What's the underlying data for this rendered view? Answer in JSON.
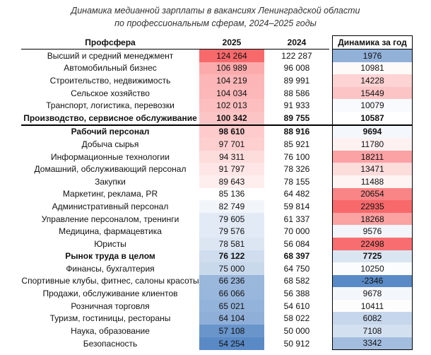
{
  "title": [
    "Динамика медианной зарплаты в вакансиях Ленинградской области",
    "по профессиональным сферам, 2024–2025 годы"
  ],
  "table": {
    "header": [
      "Профсфера",
      "2025",
      "2024",
      "Динамика за год"
    ],
    "rows": [
      [
        "Высший и средний менеджмент",
        "124 264",
        "122 287",
        "1976"
      ],
      [
        "Автомобильный бизнес",
        "106 989",
        "96 008",
        "10981"
      ],
      [
        "Строительство, недвижимость",
        "104 219",
        "89 991",
        "14228"
      ],
      [
        "Сельское хозяйство",
        "104 034",
        "88 586",
        "15449"
      ],
      [
        "Транспорт, логистика, перевозки",
        "102 013",
        "91 933",
        "10079"
      ],
      [
        "Производство, сервисное обслуживание",
        "100 342",
        "89 755",
        "10587"
      ],
      [
        "Рабочий персонал",
        "98 610",
        "88 916",
        "9694"
      ],
      [
        "Добыча сырья",
        "97 701",
        "85 921",
        "11780"
      ],
      [
        "Информационные технологии",
        "94 311",
        "76 100",
        "18211"
      ],
      [
        "Домашний, обслуживающий персонал",
        "91 797",
        "78 326",
        "13471"
      ],
      [
        "Закупки",
        "89 643",
        "78 155",
        "11488"
      ],
      [
        "Маркетинг, реклама, PR",
        "85 136",
        "64 482",
        "20654"
      ],
      [
        "Административный персонал",
        "82 749",
        "59 814",
        "22935"
      ],
      [
        "Управление персоналом, тренинги",
        "79 605",
        "61 337",
        "18268"
      ],
      [
        "Медицина, фармацевтика",
        "79 576",
        "70 000",
        "9576"
      ],
      [
        "Юристы",
        "78 581",
        "56 084",
        "22498"
      ],
      [
        "Рынок труда в целом",
        "76 122",
        "68 397",
        "7725"
      ],
      [
        "Финансы, бухгалтерия",
        "75 000",
        "64 750",
        "10250"
      ],
      [
        "Спортивные клубы, фитнес, салоны красоты",
        "66 236",
        "68 582",
        "-2346"
      ],
      [
        "Продажи, обслуживание клиентов",
        "66 066",
        "56 388",
        "9678"
      ],
      [
        "Розничная торговля",
        "65 021",
        "54 610",
        "10411"
      ],
      [
        "Туризм, гостиницы, рестораны",
        "64 104",
        "58 022",
        "6082"
      ],
      [
        "Наука, образование",
        "57 108",
        "50 000",
        "7108"
      ],
      [
        "Безопасность",
        "54 254",
        "50 912",
        "3342"
      ]
    ]
  }
}
